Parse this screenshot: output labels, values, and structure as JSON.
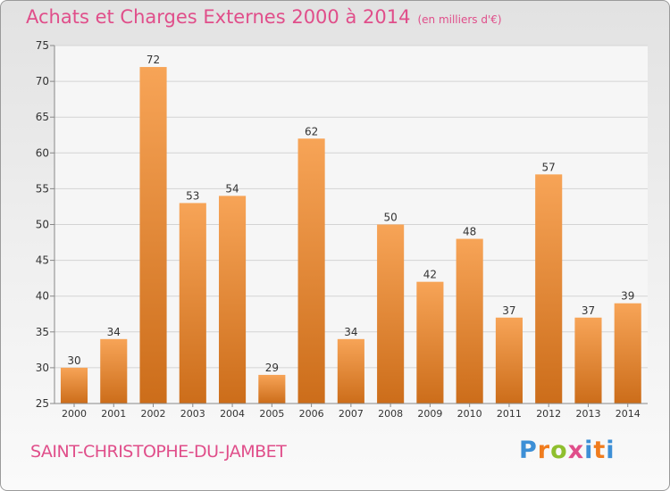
{
  "header": {
    "title": "Achats et Charges Externes 2000 à 2014",
    "unit": "(en milliers d'€)"
  },
  "footer": {
    "city": "SAINT-CHRISTOPHE-DU-JAMBET",
    "brand": "Proxiti"
  },
  "colors": {
    "bar_top": "#f7a457",
    "bar_bottom": "#cc6d1a",
    "title": "#e04e8a",
    "brand": [
      "#3d8fd6",
      "#f07c1e",
      "#8fbf2e",
      "#e04e8a",
      "#3d8fd6",
      "#f07c1e",
      "#3d8fd6"
    ]
  },
  "chart_data": {
    "type": "bar",
    "title": "Achats et Charges Externes 2000 à 2014",
    "subtitle": "(en milliers d'€)",
    "categories": [
      "2000",
      "2001",
      "2002",
      "2003",
      "2004",
      "2005",
      "2006",
      "2007",
      "2008",
      "2009",
      "2010",
      "2011",
      "2012",
      "2013",
      "2014"
    ],
    "values": [
      30,
      34,
      72,
      53,
      54,
      29,
      62,
      34,
      50,
      42,
      48,
      37,
      57,
      37,
      39
    ],
    "ylim": [
      25,
      75
    ],
    "yticks": [
      25,
      30,
      35,
      40,
      45,
      50,
      55,
      60,
      65,
      70,
      75
    ],
    "grid": true,
    "data_labels": true,
    "legend": "none"
  }
}
